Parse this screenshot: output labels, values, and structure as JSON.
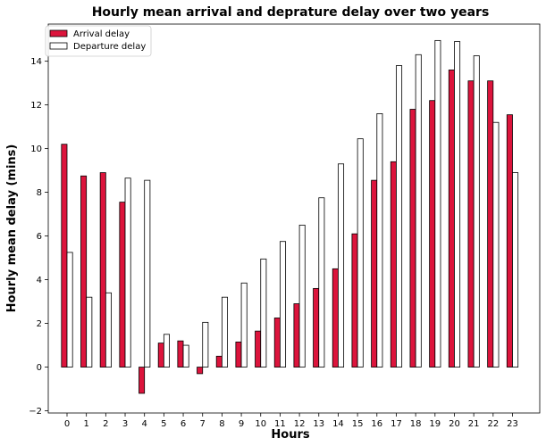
{
  "chart_data": {
    "type": "bar",
    "title": "Hourly mean arrival and deprature delay over two years",
    "xlabel": "Hours",
    "ylabel": "Hourly mean delay (mins)",
    "ylim": [
      -2.1,
      15.7
    ],
    "yticks": [
      -2,
      0,
      2,
      4,
      6,
      8,
      10,
      12,
      14
    ],
    "categories": [
      "0",
      "1",
      "2",
      "3",
      "4",
      "5",
      "6",
      "7",
      "8",
      "9",
      "10",
      "11",
      "12",
      "13",
      "14",
      "15",
      "16",
      "17",
      "18",
      "19",
      "20",
      "21",
      "22",
      "23"
    ],
    "series": [
      {
        "name": "Arrival delay",
        "color": "#dc143c",
        "values": [
          10.2,
          8.75,
          8.9,
          7.55,
          -1.2,
          1.1,
          1.2,
          -0.3,
          0.5,
          1.15,
          1.65,
          2.25,
          2.9,
          3.6,
          4.5,
          6.1,
          8.55,
          9.4,
          11.8,
          12.2,
          13.6,
          13.1,
          13.1,
          11.55
        ]
      },
      {
        "name": "Departure delay",
        "color": "#ffffff",
        "values": [
          5.25,
          3.2,
          3.4,
          8.65,
          8.55,
          1.5,
          1.0,
          2.05,
          3.2,
          3.85,
          4.95,
          5.75,
          6.5,
          7.75,
          9.3,
          10.45,
          11.6,
          13.8,
          14.3,
          14.95,
          14.9,
          14.25,
          11.2,
          8.9
        ]
      }
    ],
    "legend": {
      "position": "top-left"
    },
    "grid": false
  }
}
